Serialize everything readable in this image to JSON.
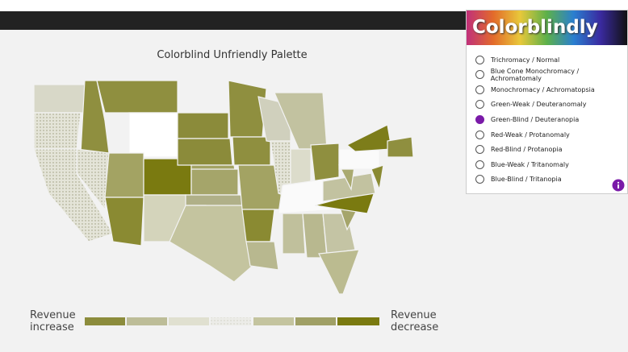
{
  "chart_title": "Colorblind Unfriendly Palette",
  "legend": {
    "left_label": "Revenue increase",
    "right_label": "Revenue decrease"
  },
  "extension": {
    "name": "Colorblindly",
    "options": [
      "Trichromacy / Normal",
      "Blue Cone Monochromacy / Achromatomaly",
      "Monochromacy / Achromatopsia",
      "Green-Weak / Deuteranomaly",
      "Green-Blind / Deuteranopia",
      "Red-Weak / Protanomaly",
      "Red-Blind / Protanopia",
      "Blue-Weak / Tritanomaly",
      "Blue-Blind / Tritanopia"
    ],
    "selected": 4
  }
}
